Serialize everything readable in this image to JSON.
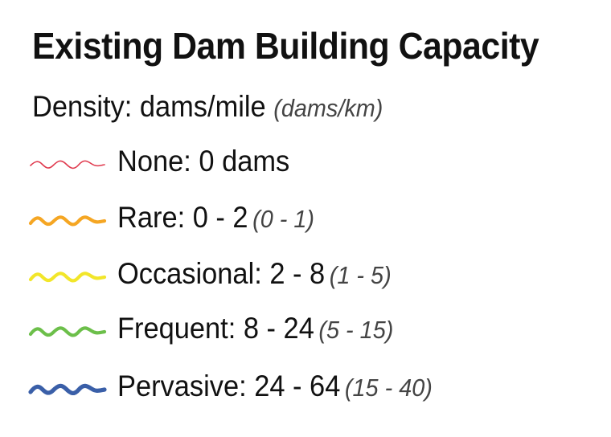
{
  "legend": {
    "title": "Existing Dam Building Capacity",
    "subtitle": {
      "imperial": "Density: dams/mile",
      "metric": "(dams/km)"
    },
    "classes": [
      {
        "label": "None: 0 dams",
        "metric": "",
        "color": "#e03a4e",
        "stroke": "thin"
      },
      {
        "label": "Rare: 0 - 2",
        "metric": "(0 - 1)",
        "color": "#f5a623",
        "stroke": "medium"
      },
      {
        "label": "Occasional: 2 - 8",
        "metric": "(1 - 5)",
        "color": "#f2e62a",
        "stroke": "medium"
      },
      {
        "label": "Frequent: 8 - 24",
        "metric": "(5 - 15)",
        "color": "#6cbf4a",
        "stroke": "medium"
      },
      {
        "label": "Pervasive: 24 - 64",
        "metric": "(15 - 40)",
        "color": "#3a5fa8",
        "stroke": "thick"
      }
    ]
  }
}
